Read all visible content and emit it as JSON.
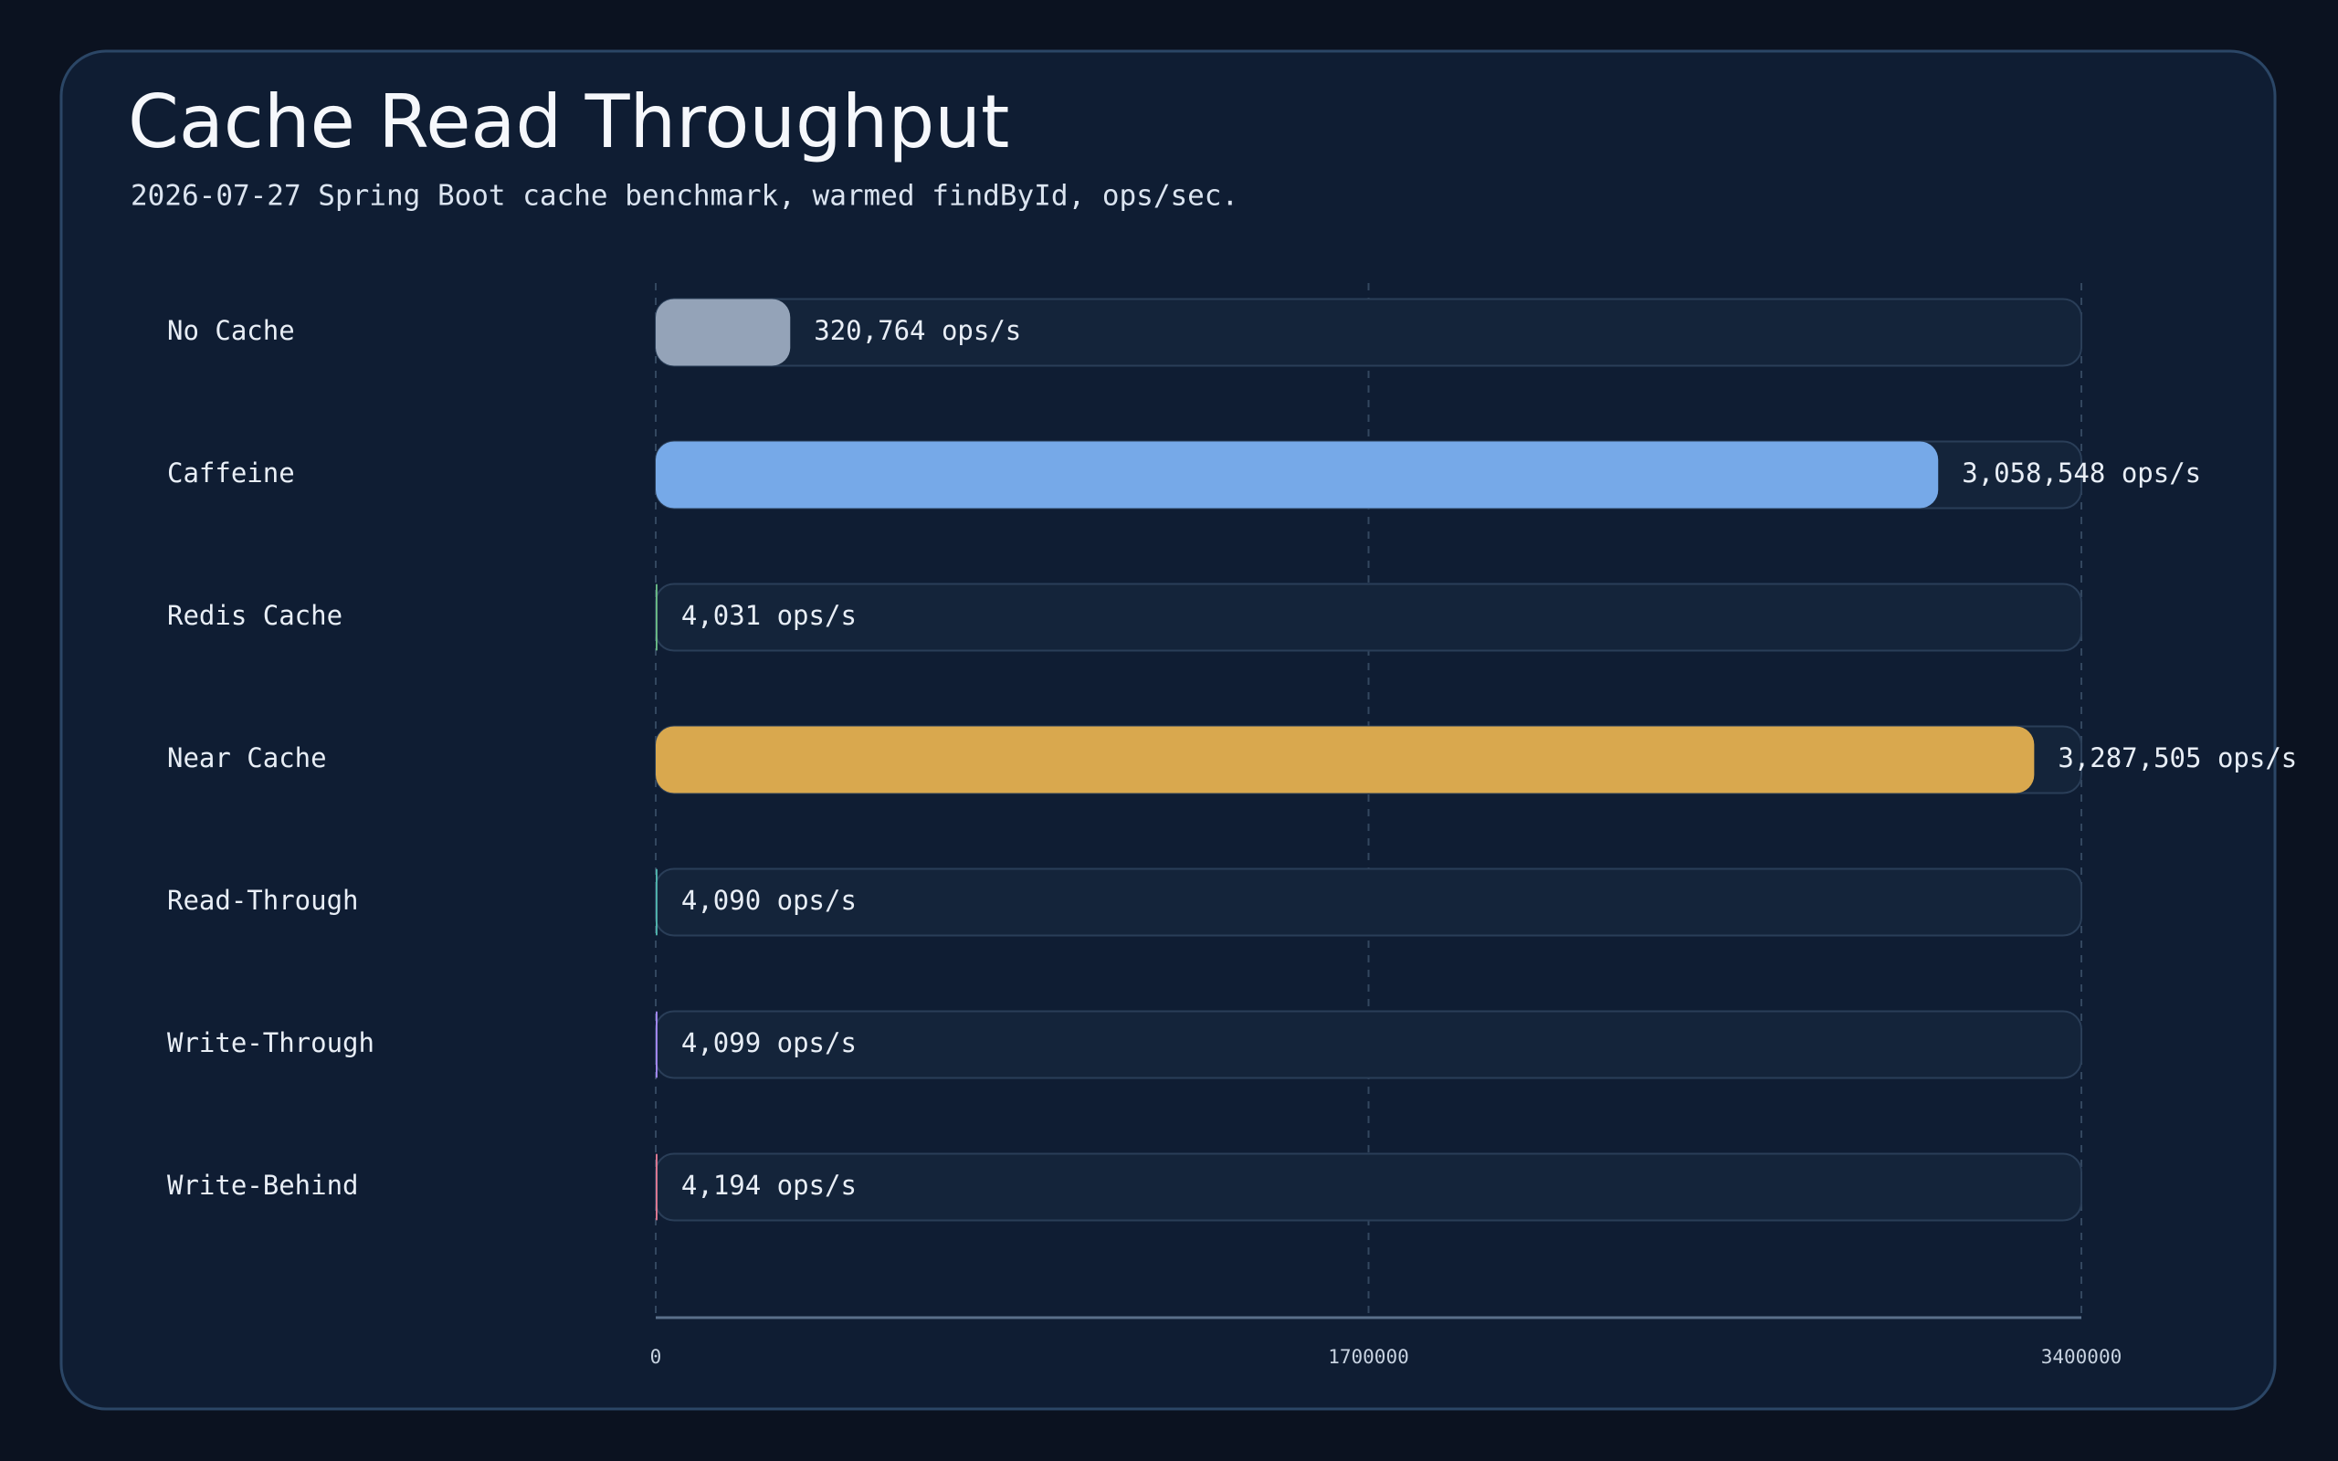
{
  "chart_data": {
    "type": "bar",
    "orientation": "horizontal",
    "title": "Cache Read Throughput",
    "subtitle": "2026-07-27 Spring Boot cache benchmark, warmed findById, ops/sec.",
    "categories": [
      "No Cache",
      "Caffeine",
      "Redis Cache",
      "Near Cache",
      "Read-Through",
      "Write-Through",
      "Write-Behind"
    ],
    "values": [
      320764,
      3058548,
      4031,
      3287505,
      4090,
      4099,
      4194
    ],
    "value_labels": [
      "320,764 ops/s",
      "3,058,548 ops/s",
      "4,031 ops/s",
      "3,287,505 ops/s",
      "4,090 ops/s",
      "4,099 ops/s",
      "4,194 ops/s"
    ],
    "colors": [
      "#94a3b8",
      "#76a9e8",
      "#6dbf88",
      "#d9a84e",
      "#52b7b0",
      "#a78bfa",
      "#e07a93"
    ],
    "xlim": [
      0,
      3400000
    ],
    "xticks": [
      0,
      1700000,
      3400000
    ],
    "grid": true
  }
}
